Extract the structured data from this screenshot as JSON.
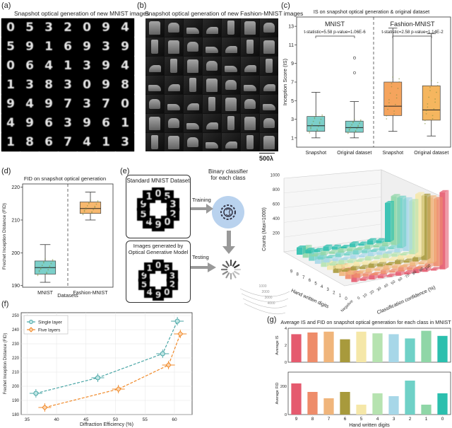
{
  "panel_labels": {
    "a": "(a)",
    "b": "(b)",
    "c": "(c)",
    "d": "(d)",
    "e": "(e)",
    "f": "(f)",
    "g": "(g)"
  },
  "panel_a": {
    "title": "Snapshot optical generation of new MNIST images",
    "digits": [
      "0",
      "5",
      "3",
      "2",
      "0",
      "9",
      "4",
      "5",
      "9",
      "1",
      "6",
      "9",
      "3",
      "9",
      "0",
      "6",
      "4",
      "1",
      "3",
      "9",
      "4",
      "1",
      "3",
      "8",
      "3",
      "0",
      "9",
      "8",
      "9",
      "4",
      "9",
      "7",
      "3",
      "7",
      "0",
      "4",
      "9",
      "6",
      "3",
      "9",
      "6",
      "1",
      "1",
      "8",
      "6",
      "7",
      "4",
      "1",
      "3"
    ]
  },
  "panel_b": {
    "title": "Snapshot optical generation of new Fashion-MNIST images",
    "scale": "500λ"
  },
  "chart_data": [
    {
      "id": "c",
      "type": "box",
      "title": "IS on snapshot optical generation & original dataset",
      "ylabel": "Inception Score (IS)",
      "ylim": [
        0,
        14
      ],
      "yticks": [
        1,
        3,
        5,
        7,
        9,
        11,
        13
      ],
      "group_labels": [
        "MNIST",
        "Fashion-MNIST"
      ],
      "annotations": [
        "t-statistic=5.58 p-value=1.06E-6",
        "t-statistic=2.58 p-value=1.14E-2"
      ],
      "categories": [
        "Snapshot",
        "Original dataset",
        "Snapshot",
        "Original dataset"
      ],
      "boxes": [
        {
          "color": "#7ccfc9",
          "whislo": 1.0,
          "q1": 1.7,
          "med": 2.3,
          "q3": 3.3,
          "whishi": 5.9
        },
        {
          "color": "#7ccfc9",
          "whislo": 1.0,
          "q1": 1.6,
          "med": 2.1,
          "q3": 2.8,
          "whishi": 4.9
        },
        {
          "color": "#f5a45d",
          "whislo": 1.7,
          "q1": 3.4,
          "med": 4.4,
          "q3": 7.0,
          "whishi": 12.8
        },
        {
          "color": "#f5b65f",
          "whislo": 1.2,
          "q1": 2.9,
          "med": 4.0,
          "q3": 6.6,
          "whishi": 12.2
        }
      ],
      "outliers": [
        8.0,
        9.6
      ]
    },
    {
      "id": "d",
      "type": "box",
      "title": "FID on snapshot optical generation",
      "ylabel": "Frechet Inception Distance (FID)",
      "xlabel": "Datasets",
      "ylim": [
        189.5,
        221
      ],
      "yticks": [
        190,
        200,
        210,
        220
      ],
      "categories": [
        "MNIST",
        "Fashion-MNIST"
      ],
      "boxes": [
        {
          "color": "#7ccfc9",
          "whislo": 191.0,
          "q1": 193.5,
          "med": 195.5,
          "q3": 197.5,
          "whishi": 202.5
        },
        {
          "color": "#f7b86e",
          "whislo": 210.0,
          "q1": 212.0,
          "med": 213.5,
          "q3": 215.5,
          "whishi": 218.5
        }
      ]
    },
    {
      "id": "e3d",
      "type": "bar3d",
      "zlabel": "Counts (Max=1000)",
      "xlabel": "Classification confidence (%)",
      "ylabel": "Hand written digits",
      "zticks": [
        "200",
        "400",
        "600",
        "800",
        "1000"
      ],
      "digit_ticks": [
        "0",
        "1",
        "2",
        "3",
        "4",
        "5",
        "6",
        "7",
        "8",
        "9"
      ],
      "conf_ticks": [
        "Negative",
        "0",
        "10",
        "20",
        "30",
        "40",
        "50",
        "60",
        "70",
        "80",
        "90",
        "100"
      ],
      "side_ticks": [
        "1000",
        "2000",
        "3000",
        "4000"
      ]
    },
    {
      "id": "f",
      "type": "line",
      "xlabel": "Diffraction Efficiency (%)",
      "ylabel": "Frechet Inception Distance (FID)",
      "xlim": [
        34,
        63
      ],
      "ylim": [
        180,
        252
      ],
      "xticks": [
        35,
        40,
        45,
        50,
        55,
        60
      ],
      "yticks": [
        180,
        190,
        200,
        210,
        220,
        230,
        240,
        250
      ],
      "series": [
        {
          "name": "Single layer",
          "color": "#4aa6a6",
          "points": [
            [
              36.5,
              195
            ],
            [
              47,
              206
            ],
            [
              58,
              223
            ],
            [
              60.5,
              246
            ]
          ]
        },
        {
          "name": "Five layers",
          "color": "#f08a2a",
          "points": [
            [
              38,
              185
            ],
            [
              50.5,
              198
            ],
            [
              59,
              215
            ],
            [
              61,
              237
            ]
          ]
        }
      ]
    },
    {
      "id": "g",
      "type": "bar",
      "title": "Average IS and FID on snapshot optical generation for each class in MNIST",
      "xlabel": "Hand written digits",
      "categories": [
        "9",
        "8",
        "7",
        "6",
        "5",
        "4",
        "3",
        "2",
        "1",
        "0"
      ],
      "colors": [
        "#e55a6e",
        "#ee8c6a",
        "#f0b57b",
        "#a89a3c",
        "#f5e7a8",
        "#b6e3b0",
        "#a7d7e8",
        "#6fd1c7",
        "#8fd6a7",
        "#2bbfae"
      ],
      "series": [
        {
          "name": "Average IS",
          "ylim": [
            0,
            4
          ],
          "yticks": [
            0,
            2,
            4
          ],
          "values": [
            3.3,
            3.5,
            3.6,
            2.7,
            3.6,
            3.4,
            3.3,
            2.8,
            3.7,
            3.1
          ]
        },
        {
          "name": "Average FID",
          "ylim": [
            0,
            300
          ],
          "yticks": [
            0,
            200
          ],
          "values": [
            220,
            160,
            115,
            160,
            70,
            150,
            130,
            240,
            70,
            150
          ]
        }
      ]
    }
  ],
  "panel_e": {
    "box1_title": "Standard MNIST Dataset",
    "box2_title": "Images generated by Optical Generative Model",
    "classifier_label": "Binary classifier for each class",
    "training_label": "Training",
    "testing_label": "Testing"
  }
}
